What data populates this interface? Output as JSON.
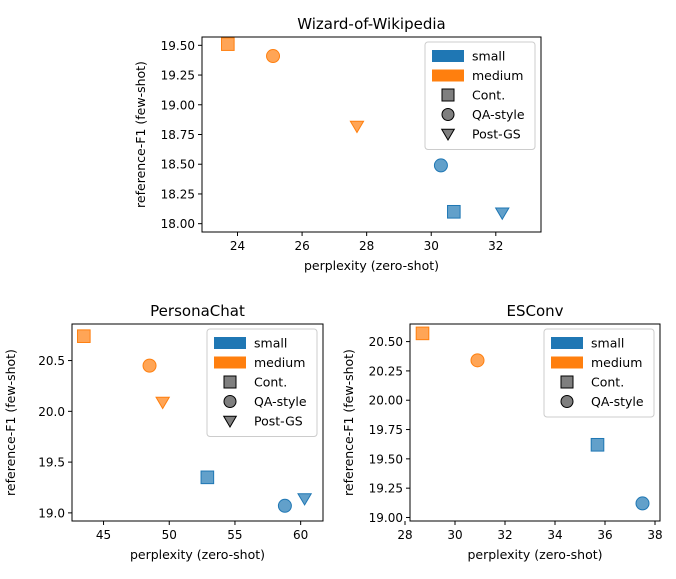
{
  "colors": {
    "small": "#1f77b4",
    "medium": "#ff7f0e",
    "legend_marker": "#7f7f7f"
  },
  "chart_data": [
    {
      "type": "scatter",
      "title": "Wizard-of-Wikipedia",
      "xlabel": "perplexity (zero-shot)",
      "ylabel": "reference-F1 (few-shot)",
      "xlim": [
        22.9,
        33.4
      ],
      "ylim": [
        17.93,
        19.57
      ],
      "xticks": [
        24,
        26,
        28,
        30,
        32
      ],
      "yticks": [
        18.0,
        18.25,
        18.5,
        18.75,
        19.0,
        19.25,
        19.5
      ],
      "tick_decimals": [
        0,
        2
      ],
      "legend": {
        "position": "top-right",
        "entries": [
          {
            "kind": "patch",
            "color": "small",
            "label": "small"
          },
          {
            "kind": "patch",
            "color": "medium",
            "label": "medium"
          },
          {
            "kind": "marker",
            "marker": "square",
            "label": "Cont."
          },
          {
            "kind": "marker",
            "marker": "circle",
            "label": "QA-style"
          },
          {
            "kind": "marker",
            "marker": "triangle",
            "label": "Post-GS"
          }
        ]
      },
      "points": [
        {
          "size": "medium",
          "method": "square",
          "x": 23.7,
          "y": 19.51
        },
        {
          "size": "medium",
          "method": "circle",
          "x": 25.1,
          "y": 19.41
        },
        {
          "size": "medium",
          "method": "triangle",
          "x": 27.7,
          "y": 18.82
        },
        {
          "size": "small",
          "method": "circle",
          "x": 30.3,
          "y": 18.49
        },
        {
          "size": "small",
          "method": "square",
          "x": 30.7,
          "y": 18.1
        },
        {
          "size": "small",
          "method": "triangle",
          "x": 32.2,
          "y": 18.09
        }
      ]
    },
    {
      "type": "scatter",
      "title": "PersonaChat",
      "xlabel": "perplexity (zero-shot)",
      "ylabel": "reference-F1 (few-shot)",
      "xlim": [
        42.6,
        61.7
      ],
      "ylim": [
        18.92,
        20.86
      ],
      "xticks": [
        45,
        50,
        55,
        60
      ],
      "yticks": [
        19.0,
        19.5,
        20.0,
        20.5
      ],
      "tick_decimals": [
        0,
        1
      ],
      "legend": {
        "position": "top-right",
        "entries": [
          {
            "kind": "patch",
            "color": "small",
            "label": "small"
          },
          {
            "kind": "patch",
            "color": "medium",
            "label": "medium"
          },
          {
            "kind": "marker",
            "marker": "square",
            "label": "Cont."
          },
          {
            "kind": "marker",
            "marker": "circle",
            "label": "QA-style"
          },
          {
            "kind": "marker",
            "marker": "triangle",
            "label": "Post-GS"
          }
        ]
      },
      "points": [
        {
          "size": "medium",
          "method": "square",
          "x": 43.5,
          "y": 20.74
        },
        {
          "size": "medium",
          "method": "circle",
          "x": 48.5,
          "y": 20.45
        },
        {
          "size": "medium",
          "method": "triangle",
          "x": 49.5,
          "y": 20.09
        },
        {
          "size": "small",
          "method": "square",
          "x": 52.9,
          "y": 19.35
        },
        {
          "size": "small",
          "method": "circle",
          "x": 58.8,
          "y": 19.07
        },
        {
          "size": "small",
          "method": "triangle",
          "x": 60.3,
          "y": 19.14
        }
      ]
    },
    {
      "type": "scatter",
      "title": "ESConv",
      "xlabel": "perplexity (zero-shot)",
      "ylabel": "reference-F1 (few-shot)",
      "xlim": [
        28.2,
        38.2
      ],
      "ylim": [
        18.97,
        20.65
      ],
      "xticks": [
        28,
        30,
        32,
        34,
        36,
        38
      ],
      "yticks": [
        19.0,
        19.25,
        19.5,
        19.75,
        20.0,
        20.25,
        20.5
      ],
      "tick_decimals": [
        0,
        2
      ],
      "legend": {
        "position": "top-right",
        "entries": [
          {
            "kind": "patch",
            "color": "small",
            "label": "small"
          },
          {
            "kind": "patch",
            "color": "medium",
            "label": "medium"
          },
          {
            "kind": "marker",
            "marker": "square",
            "label": "Cont."
          },
          {
            "kind": "marker",
            "marker": "circle",
            "label": "QA-style"
          }
        ]
      },
      "points": [
        {
          "size": "medium",
          "method": "square",
          "x": 28.7,
          "y": 20.57
        },
        {
          "size": "medium",
          "method": "circle",
          "x": 30.9,
          "y": 20.34
        },
        {
          "size": "small",
          "method": "square",
          "x": 35.7,
          "y": 19.62
        },
        {
          "size": "small",
          "method": "circle",
          "x": 37.5,
          "y": 19.12
        }
      ]
    }
  ]
}
